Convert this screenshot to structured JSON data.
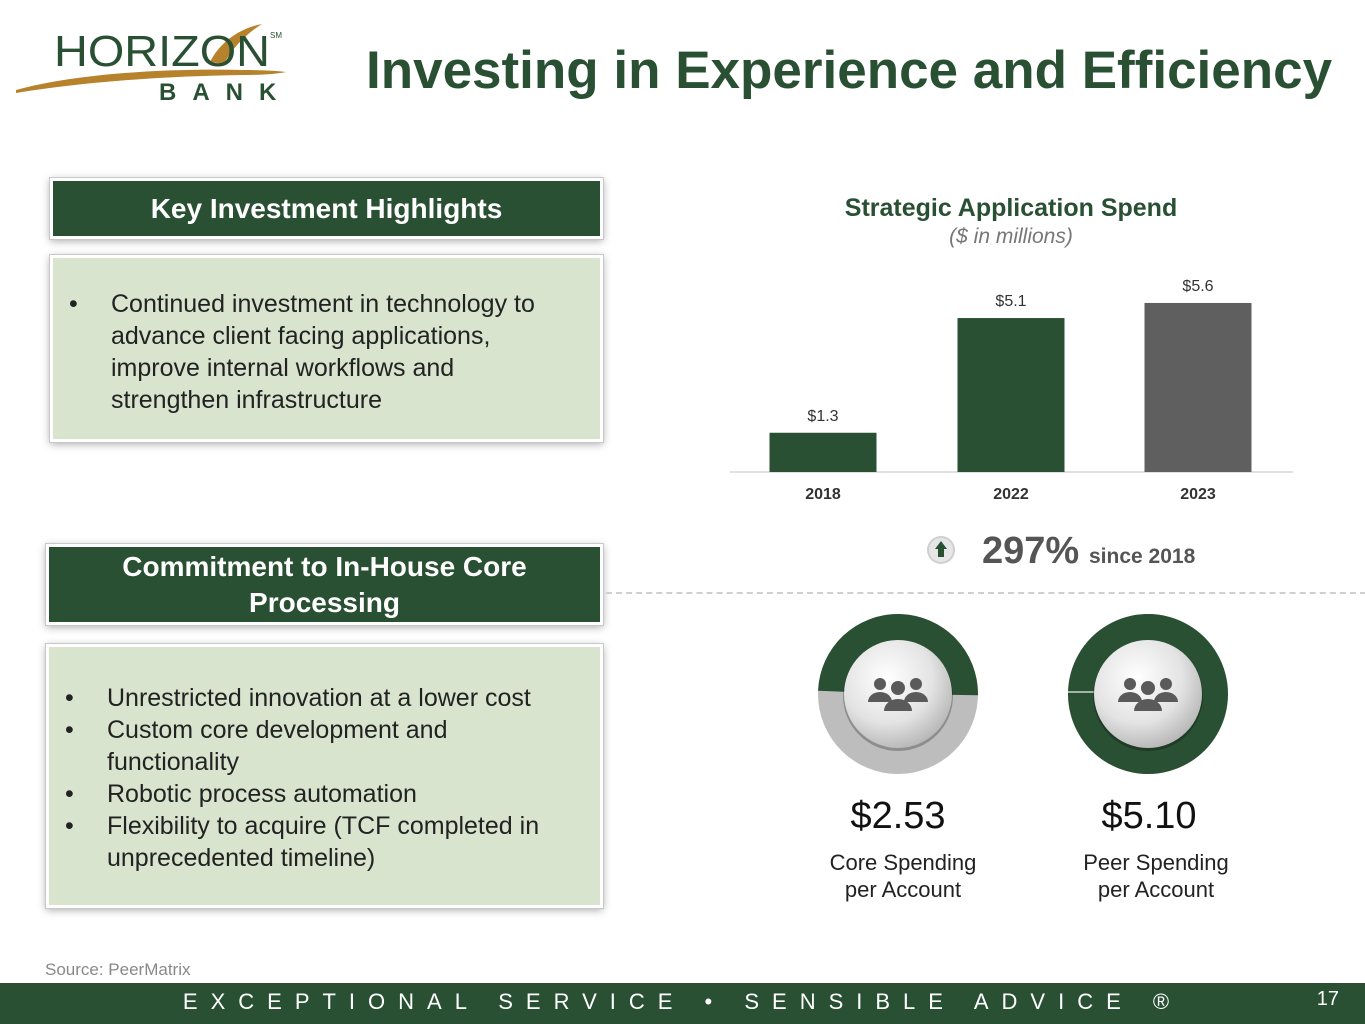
{
  "header": {
    "logo_word": "HORIZON",
    "logo_sub": "BANK",
    "logo_mark": "SM",
    "title": "Investing in Experience and Efficiency"
  },
  "highlights": {
    "heading": "Key Investment Highlights",
    "bullets": [
      "Continued investment in technology to advance client facing applications, improve internal workflows and strengthen infrastructure"
    ]
  },
  "core": {
    "heading": "Commitment to In-House Core Processing",
    "bullets": [
      "Unrestricted innovation at a lower cost",
      "Custom core development and functionality",
      "Robotic process automation",
      "Flexibility to acquire (TCF completed in unprecedented timeline)"
    ]
  },
  "chart_data": {
    "type": "bar",
    "title": "Strategic Application Spend",
    "subtitle": "($ in millions)",
    "categories": [
      "2018",
      "2022",
      "2023"
    ],
    "values": [
      1.3,
      5.1,
      5.6
    ],
    "value_labels": [
      "$1.3",
      "$5.1",
      "$5.6"
    ],
    "bar_colors": [
      "#2a5034",
      "#2a5034",
      "#5f5f5f"
    ],
    "ylim": [
      0,
      6
    ],
    "grid": false,
    "legend": "none"
  },
  "increase": {
    "value": "297%",
    "label": "since 2018",
    "icon": "up-arrow-icon"
  },
  "spending": [
    {
      "amount": "$2.53",
      "label_line1": "Core Spending",
      "label_line2": "per Account",
      "fill_fraction": 0.496,
      "icon": "people-group-icon"
    },
    {
      "amount": "$5.10",
      "label_line1": "Peer Spending",
      "label_line2": "per Account",
      "fill_fraction": 1.0,
      "icon": "people-group-icon"
    }
  ],
  "footer": {
    "source": "Source: PeerMatrix",
    "tagline": "EXCEPTIONAL SERVICE • SENSIBLE ADVICE ®",
    "page_number": "17"
  },
  "colors": {
    "brand_green": "#2a5034",
    "accent_gold": "#b7822c",
    "panel_green": "#d8e4cd",
    "gray_bar": "#5f5f5f"
  }
}
